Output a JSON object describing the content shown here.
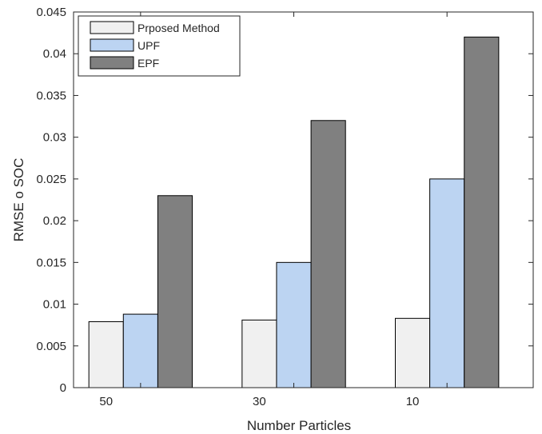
{
  "chart_data": {
    "type": "bar",
    "title": "",
    "xlabel": "Number Particles",
    "ylabel": "RMSE o SOC",
    "categories": [
      "50",
      "30",
      "10"
    ],
    "series": [
      {
        "name": "Prposed Method",
        "values": [
          0.0079,
          0.0081,
          0.0083
        ],
        "color": "#f0f0f0"
      },
      {
        "name": "UPF",
        "values": [
          0.0088,
          0.015,
          0.025
        ],
        "color": "#bcd4f2"
      },
      {
        "name": "EPF",
        "values": [
          0.023,
          0.032,
          0.042
        ],
        "color": "#808080"
      }
    ],
    "ylim": [
      0,
      0.045
    ],
    "yticks": [
      "0",
      "0.005",
      "0.01",
      "0.015",
      "0.02",
      "0.025",
      "0.03",
      "0.035",
      "0.04",
      "0.045"
    ],
    "grid": false,
    "legend_position": "top-left"
  }
}
